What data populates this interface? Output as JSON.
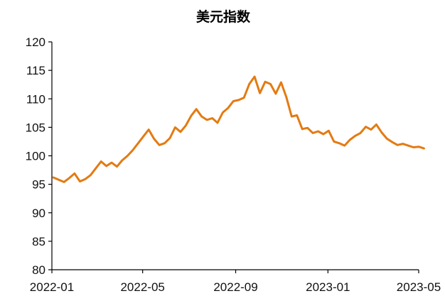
{
  "chart_data": {
    "type": "line",
    "title": "美元指数",
    "xlabel": "",
    "ylabel": "",
    "ylim": [
      80,
      120
    ],
    "y_ticks": [
      80,
      85,
      90,
      95,
      100,
      105,
      110,
      115,
      120
    ],
    "x_ticks": [
      "2022-01",
      "2022-05",
      "2022-09",
      "2023-01",
      "2023-05"
    ],
    "grid": false,
    "legend": "none",
    "color": "#e37b12",
    "series": [
      {
        "x": [
          "2022-01-03",
          "2022-01-10",
          "2022-01-17",
          "2022-01-24",
          "2022-01-31",
          "2022-02-07",
          "2022-02-14",
          "2022-02-21",
          "2022-02-28",
          "2022-03-07",
          "2022-03-14",
          "2022-03-21",
          "2022-03-28",
          "2022-04-04",
          "2022-04-11",
          "2022-04-18",
          "2022-04-25",
          "2022-05-02",
          "2022-05-09",
          "2022-05-16",
          "2022-05-23",
          "2022-05-30",
          "2022-06-06",
          "2022-06-13",
          "2022-06-20",
          "2022-06-27",
          "2022-07-04",
          "2022-07-11",
          "2022-07-18",
          "2022-07-25",
          "2022-08-01",
          "2022-08-08",
          "2022-08-15",
          "2022-08-22",
          "2022-08-29",
          "2022-09-05",
          "2022-09-12",
          "2022-09-19",
          "2022-09-26",
          "2022-10-03",
          "2022-10-10",
          "2022-10-17",
          "2022-10-24",
          "2022-10-31",
          "2022-11-07",
          "2022-11-14",
          "2022-11-21",
          "2022-11-28",
          "2022-12-05",
          "2022-12-12",
          "2022-12-19",
          "2022-12-26",
          "2023-01-02",
          "2023-01-09",
          "2023-01-16",
          "2023-01-23",
          "2023-01-30",
          "2023-02-06",
          "2023-02-13",
          "2023-02-20",
          "2023-02-27",
          "2023-03-06",
          "2023-03-13",
          "2023-03-20",
          "2023-03-27",
          "2023-04-03",
          "2023-04-10",
          "2023-04-17",
          "2023-04-24",
          "2023-05-01",
          "2023-05-08"
        ],
        "values": [
          96.2,
          95.8,
          95.4,
          96.1,
          96.9,
          95.5,
          95.9,
          96.6,
          97.8,
          99.0,
          98.2,
          98.8,
          98.1,
          99.2,
          100.0,
          101.0,
          102.2,
          103.4,
          104.6,
          103.0,
          101.9,
          102.2,
          103.1,
          105.0,
          104.2,
          105.3,
          107.0,
          108.2,
          106.9,
          106.3,
          106.6,
          105.8,
          107.6,
          108.4,
          109.6,
          109.8,
          110.2,
          112.6,
          113.9,
          111.0,
          113.0,
          112.6,
          110.9,
          112.9,
          110.3,
          106.9,
          107.1,
          104.7,
          104.9,
          104.0,
          104.3,
          103.8,
          104.4,
          102.5,
          102.2,
          101.8,
          102.8,
          103.5,
          104.0,
          105.1,
          104.6,
          105.5,
          104.1,
          103.0,
          102.4,
          101.9,
          102.1,
          101.8,
          101.5,
          101.6,
          101.3
        ]
      }
    ]
  }
}
